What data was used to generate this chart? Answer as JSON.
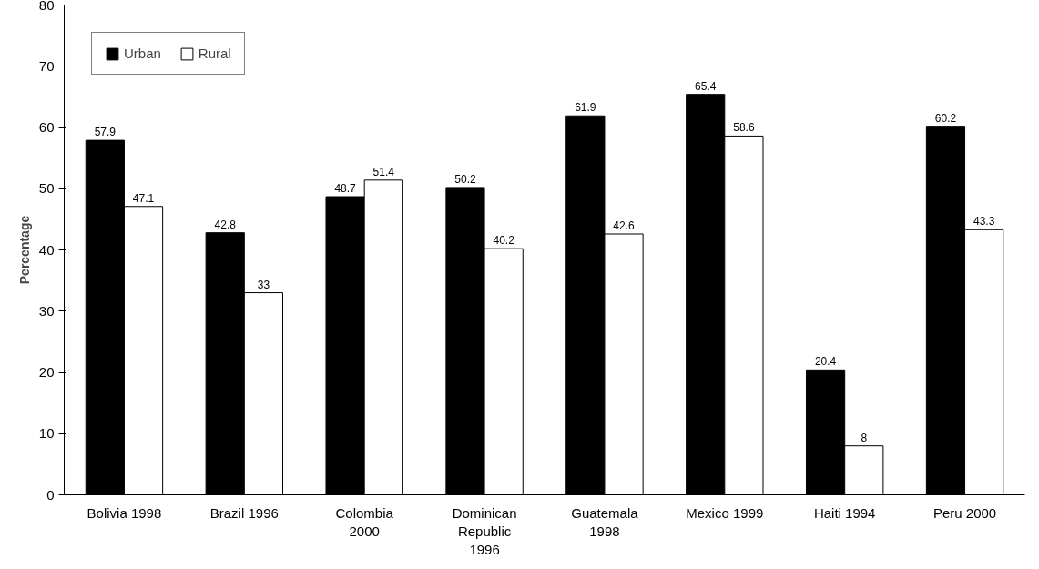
{
  "chart_data": {
    "type": "bar",
    "ylabel": "Percentage",
    "categories": [
      "Bolivia 1998",
      "Brazil 1996",
      "Colombia\n2000",
      "Dominican\nRepublic\n1996",
      "Guatemala\n1998",
      "Mexico 1999",
      "Haiti 1994",
      "Peru 2000"
    ],
    "series": [
      {
        "name": "Urban",
        "color": "#000000",
        "values": [
          57.9,
          42.8,
          48.7,
          50.2,
          61.9,
          65.4,
          20.4,
          60.2
        ]
      },
      {
        "name": "Rural",
        "color": "#ffffff",
        "values": [
          47.1,
          33,
          51.4,
          40.2,
          42.6,
          58.6,
          8,
          43.3
        ]
      }
    ],
    "ylim": [
      0,
      80
    ],
    "yticks": [
      0,
      10,
      20,
      30,
      40,
      50,
      60,
      70,
      80
    ],
    "grid": false,
    "legend": "top left",
    "data_labels": true
  }
}
